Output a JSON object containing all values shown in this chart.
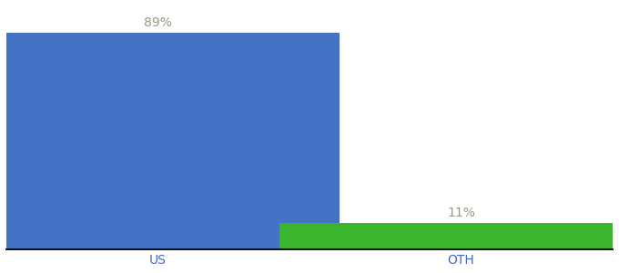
{
  "categories": [
    "US",
    "OTH"
  ],
  "values": [
    89,
    11
  ],
  "bar_colors": [
    "#4472c4",
    "#3cb52e"
  ],
  "labels": [
    "89%",
    "11%"
  ],
  "background_color": "#ffffff",
  "ylim": [
    0,
    100
  ],
  "bar_width": 0.6,
  "label_fontsize": 10,
  "tick_fontsize": 10,
  "label_color": "#999988",
  "tick_color": "#4466cc",
  "x_positions": [
    0.25,
    0.75
  ],
  "xlim": [
    0,
    1.0
  ]
}
